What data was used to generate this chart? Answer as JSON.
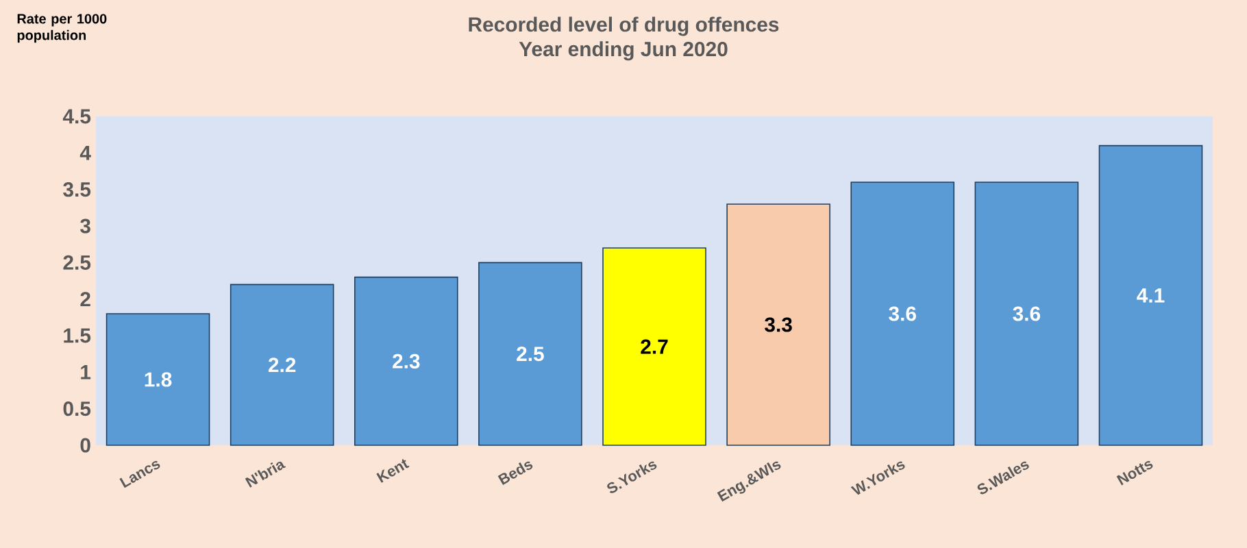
{
  "chart_data": {
    "type": "bar",
    "title": "Recorded level of drug offences",
    "subtitle": "Year ending Jun 2020",
    "ylabel": "Rate per 1000 population",
    "categories": [
      "Lancs",
      "N'bria",
      "Kent",
      "Beds",
      "S.Yorks",
      "Eng.&Wls",
      "W.Yorks",
      "S.Wales",
      "Notts"
    ],
    "values": [
      1.8,
      2.2,
      2.3,
      2.5,
      2.7,
      3.3,
      3.6,
      3.6,
      4.1
    ],
    "colors": [
      "#5b9bd5",
      "#5b9bd5",
      "#5b9bd5",
      "#5b9bd5",
      "#ffff00",
      "#f8cbad",
      "#5b9bd5",
      "#5b9bd5",
      "#5b9bd5"
    ],
    "ylim": [
      0,
      4.5
    ],
    "yticks": [
      0,
      0.5,
      1,
      1.5,
      2,
      2.5,
      3,
      3.5,
      4,
      4.5
    ],
    "data_labels": true
  }
}
